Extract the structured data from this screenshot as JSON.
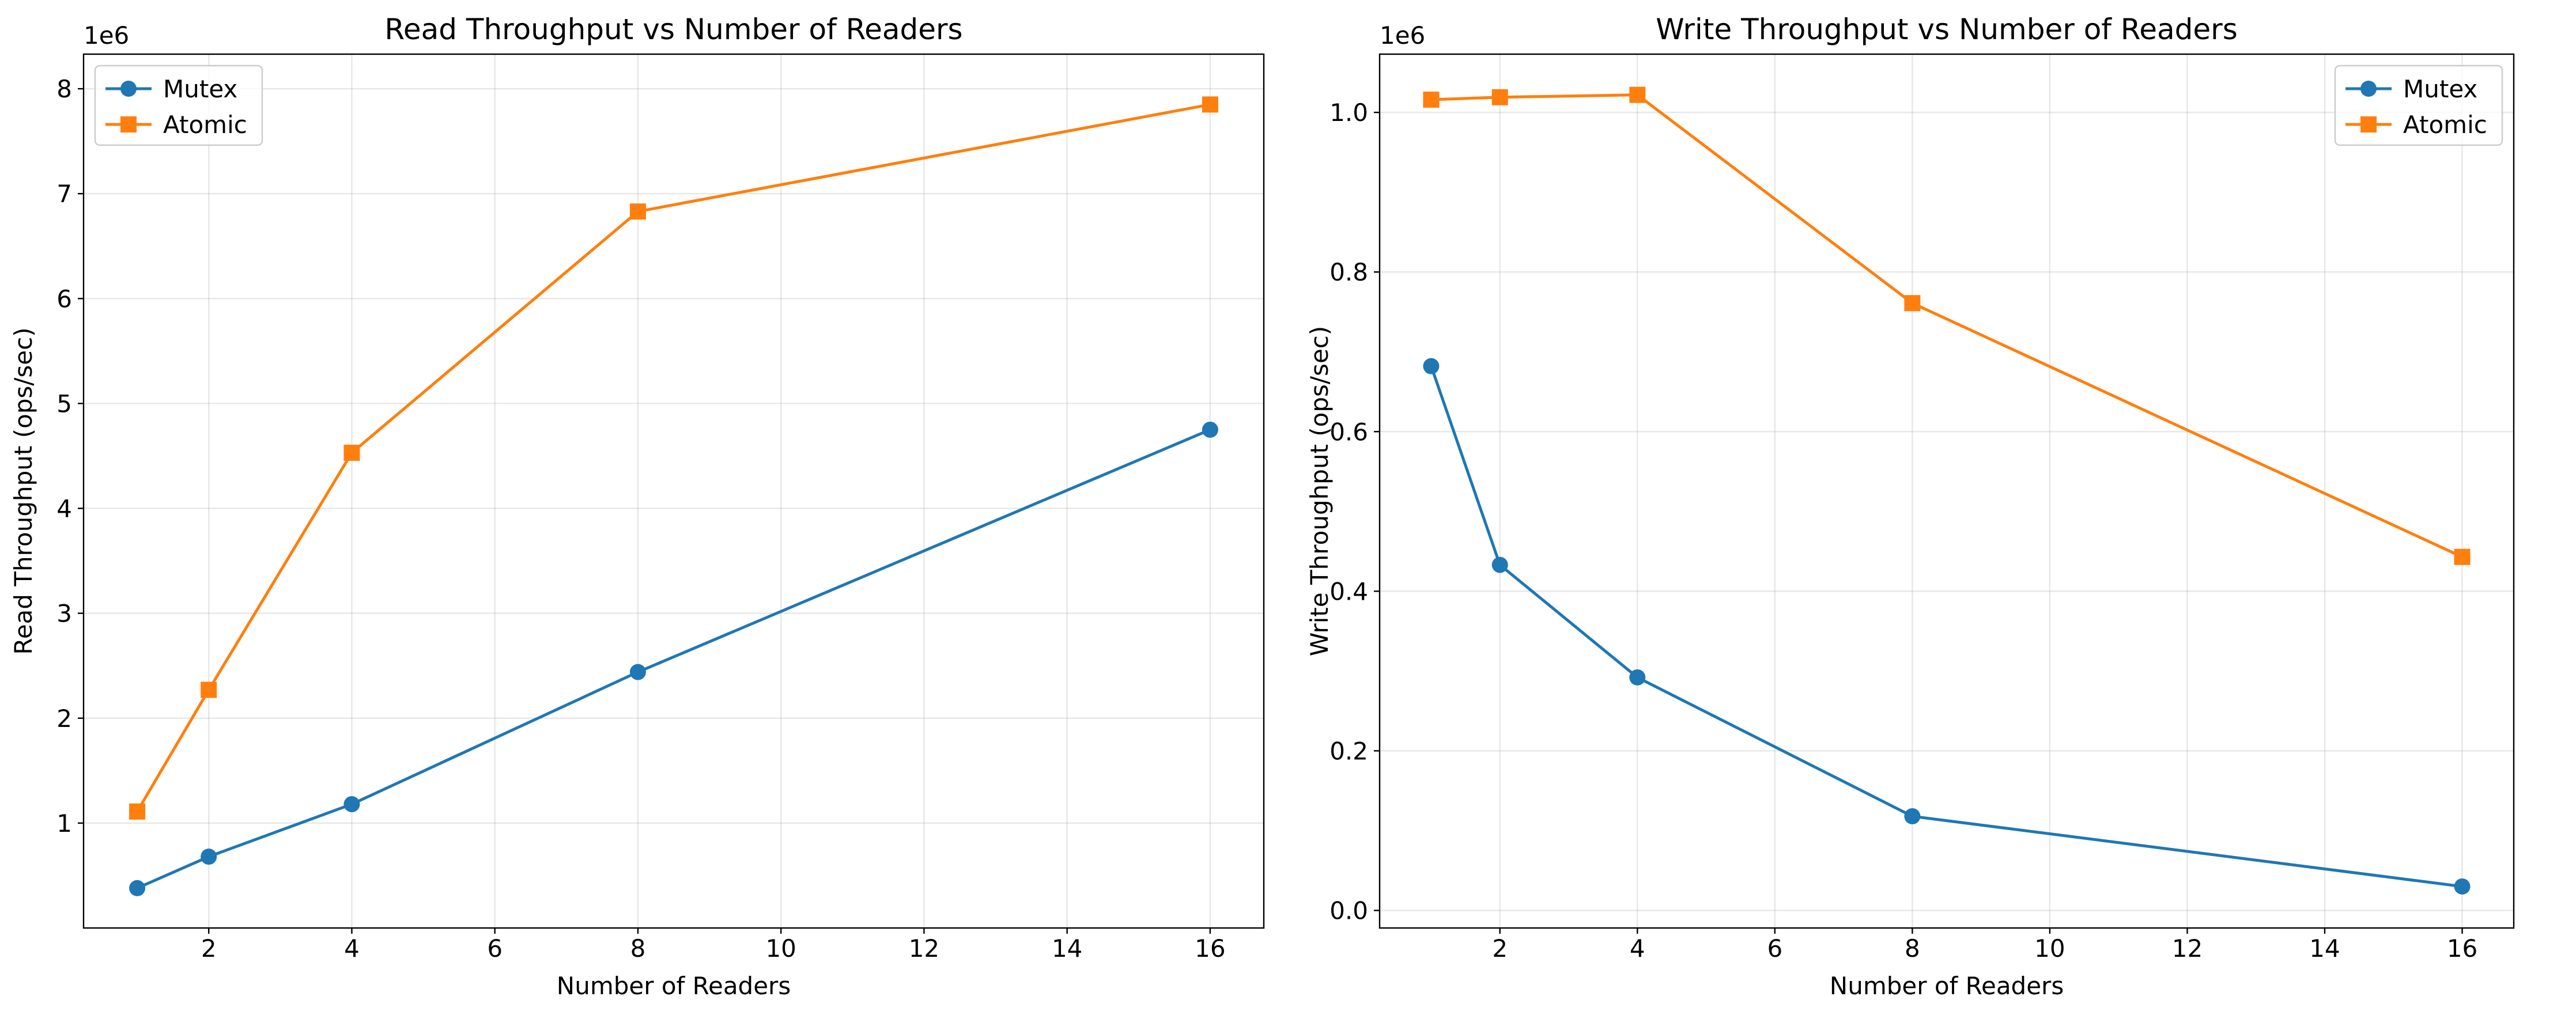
{
  "chart_data": [
    {
      "type": "line",
      "title": "Read Throughput vs Number of Readers",
      "xlabel": "Number of Readers",
      "ylabel": "Read Throughput (ops/sec)",
      "y_offset_label": "1e6",
      "x": [
        1,
        2,
        4,
        8,
        16
      ],
      "xlim": [
        0.25,
        16.75
      ],
      "ylim": [
        0.0,
        8.33
      ],
      "x_ticks": [
        2,
        4,
        6,
        8,
        10,
        12,
        14,
        16
      ],
      "x_tick_labels": [
        "2",
        "4",
        "6",
        "8",
        "10",
        "12",
        "14",
        "16"
      ],
      "y_ticks": [
        1,
        2,
        3,
        4,
        5,
        6,
        7,
        8
      ],
      "y_tick_labels": [
        "1",
        "2",
        "3",
        "4",
        "5",
        "6",
        "7",
        "8"
      ],
      "grid": true,
      "legend_position": "top-left",
      "series": [
        {
          "name": "Mutex",
          "values": [
            0.38,
            0.68,
            1.18,
            2.44,
            4.75
          ],
          "color": "#1f77b4",
          "marker": "circle"
        },
        {
          "name": "Atomic",
          "values": [
            1.11,
            2.27,
            4.53,
            6.83,
            7.85
          ],
          "color": "#ff7f0e",
          "marker": "square"
        }
      ]
    },
    {
      "type": "line",
      "title": "Write Throughput vs Number of Readers",
      "xlabel": "Number of Readers",
      "ylabel": "Write Throughput (ops/sec)",
      "y_offset_label": "1e6",
      "x": [
        1,
        2,
        4,
        8,
        16
      ],
      "xlim": [
        0.25,
        16.75
      ],
      "ylim": [
        -0.022,
        1.073
      ],
      "x_ticks": [
        2,
        4,
        6,
        8,
        10,
        12,
        14,
        16
      ],
      "x_tick_labels": [
        "2",
        "4",
        "6",
        "8",
        "10",
        "12",
        "14",
        "16"
      ],
      "y_ticks": [
        0.0,
        0.2,
        0.4,
        0.6,
        0.8,
        1.0
      ],
      "y_tick_labels": [
        "0.0",
        "0.2",
        "0.4",
        "0.6",
        "0.8",
        "1.0"
      ],
      "grid": true,
      "legend_position": "top-right",
      "series": [
        {
          "name": "Mutex",
          "values": [
            0.682,
            0.433,
            0.292,
            0.118,
            0.03
          ],
          "color": "#1f77b4",
          "marker": "circle"
        },
        {
          "name": "Atomic",
          "values": [
            1.016,
            1.019,
            1.022,
            0.761,
            0.443
          ],
          "color": "#ff7f0e",
          "marker": "square"
        }
      ]
    }
  ]
}
